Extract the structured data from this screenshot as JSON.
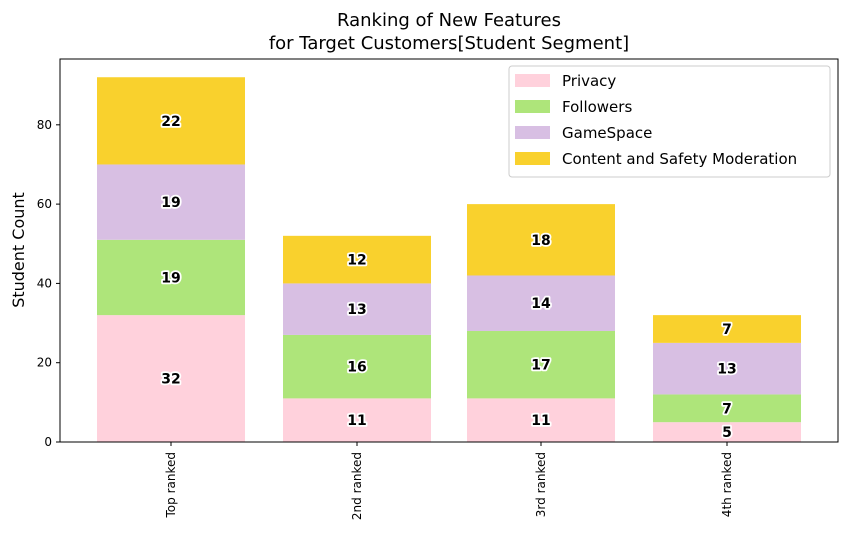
{
  "chart_data": {
    "type": "bar",
    "stacked": true,
    "title_lines": [
      "Ranking of New Features",
      "for Target Customers[Student Segment]"
    ],
    "xlabel": "",
    "ylabel": "Student Count",
    "categories": [
      "Top ranked",
      "2nd ranked",
      "3rd ranked",
      "4th ranked"
    ],
    "ylim": [
      0,
      96.6
    ],
    "yticks": [
      0,
      20,
      40,
      60,
      80
    ],
    "grid": false,
    "legend_position": "top-right",
    "series": [
      {
        "name": "Privacy",
        "color": "#FFD1DC",
        "values": [
          32,
          11,
          11,
          5
        ]
      },
      {
        "name": "Followers",
        "color": "#AEE57A",
        "values": [
          19,
          16,
          17,
          7
        ]
      },
      {
        "name": "GameSpace",
        "color": "#D8BFE3",
        "values": [
          19,
          13,
          14,
          13
        ]
      },
      {
        "name": "Content and Safety Moderation",
        "color": "#F9D12D",
        "values": [
          22,
          12,
          18,
          7
        ]
      }
    ]
  }
}
